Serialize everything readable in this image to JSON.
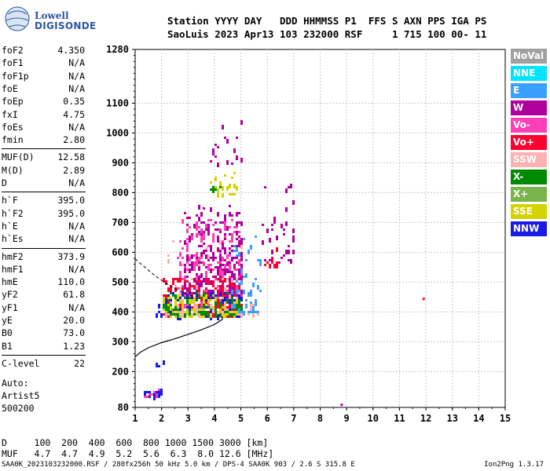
{
  "logo": {
    "line1": "Lowell",
    "line2": "DIGISONDE"
  },
  "header": {
    "line1": "Station YYYY DAY   DDD HHMMSS P1  FFS S AXN PPS IGA PS",
    "line2": "SaoLuis 2023 Apr13 103 232000 RSF     1 715 100 00- 11"
  },
  "params": [
    {
      "name": "foF2",
      "value": "4.350"
    },
    {
      "name": "foF1",
      "value": "N/A"
    },
    {
      "name": "foF1p",
      "value": "N/A"
    },
    {
      "name": "foE",
      "value": "N/A"
    },
    {
      "name": "foEp",
      "value": "0.35"
    },
    {
      "name": "fxI",
      "value": "4.75"
    },
    {
      "name": "foEs",
      "value": "N/A"
    },
    {
      "name": "fmin",
      "value": "2.80"
    },
    {
      "name": "MUF(D)",
      "value": "12.58"
    },
    {
      "name": "M(D)",
      "value": "2.89"
    },
    {
      "name": "D",
      "value": "N/A"
    },
    {
      "name": "h`F",
      "value": "395.0"
    },
    {
      "name": "h`F2",
      "value": "395.0"
    },
    {
      "name": "h`E",
      "value": "N/A"
    },
    {
      "name": "h`Es",
      "value": "N/A"
    },
    {
      "name": "hmF2",
      "value": "373.9"
    },
    {
      "name": "hmF1",
      "value": "N/A"
    },
    {
      "name": "hmE",
      "value": "110.0"
    },
    {
      "name": "yF2",
      "value": "61.8"
    },
    {
      "name": "yF1",
      "value": "N/A"
    },
    {
      "name": "yE",
      "value": "20.0"
    },
    {
      "name": "B0",
      "value": "73.0"
    },
    {
      "name": "B1",
      "value": "1.23"
    },
    {
      "name": "C-level",
      "value": "22"
    }
  ],
  "auto": {
    "line1": "Auto:",
    "line2": "Artist5",
    "line3": "500200"
  },
  "bottom": {
    "distance_row": "D     100  200  400  600  800 1000 1500 3000 [km]",
    "muf_row": "MUF   4.7  4.7  4.9  5.2  5.6  6.3  8.0 12.6 [MHz]"
  },
  "footer": {
    "left": "SAA0K_2023103232000.RSF / 280fx256h 50 kHz 5.0 km / DPS-4 SAA0K 903 / 2.6 S 315.8 E",
    "right": "Ion2Png 1.3.17"
  },
  "legend": [
    {
      "label": "NoVal",
      "color": "#a0a0a0"
    },
    {
      "label": "NNE",
      "color": "#00e5ff"
    },
    {
      "label": "E",
      "color": "#3aa0ff"
    },
    {
      "label": "W",
      "color": "#b0009b"
    },
    {
      "label": "Vo-",
      "color": "#ff3fb8"
    },
    {
      "label": "Vo+",
      "color": "#ff0030"
    },
    {
      "label": "SSW",
      "color": "#ffb0b0"
    },
    {
      "label": "X-",
      "color": "#008a00"
    },
    {
      "label": "X+",
      "color": "#78b44c"
    },
    {
      "label": "SSE",
      "color": "#d4d400"
    },
    {
      "label": "NNW",
      "color": "#1a1ae8"
    }
  ],
  "chart_data": {
    "type": "scatter",
    "xlim": [
      1,
      15
    ],
    "ylim": [
      80,
      1280
    ],
    "x_ticks": [
      1,
      2,
      3,
      4,
      5,
      6,
      7,
      8,
      9,
      10,
      11,
      12,
      13,
      14,
      15
    ],
    "y_ticks": [
      80,
      200,
      300,
      400,
      500,
      600,
      700,
      800,
      900,
      1000,
      1100,
      1280
    ],
    "grid": true,
    "profile_curve": [
      [
        1.0,
        250
      ],
      [
        1.2,
        265
      ],
      [
        1.5,
        280
      ],
      [
        2.0,
        297
      ],
      [
        2.5,
        310
      ],
      [
        3.0,
        325
      ],
      [
        3.5,
        340
      ],
      [
        4.0,
        358
      ],
      [
        4.3,
        375
      ],
      [
        4.3,
        382
      ],
      [
        4.1,
        392
      ]
    ],
    "dashed_curve": [
      [
        1.0,
        578
      ],
      [
        1.3,
        555
      ],
      [
        1.7,
        525
      ],
      [
        2.1,
        500
      ],
      [
        2.5,
        478
      ],
      [
        2.9,
        462
      ],
      [
        3.2,
        452
      ]
    ],
    "clusters": [
      {
        "color": "#b0009b",
        "x_range": [
          2.8,
          5.0
        ],
        "y_range": [
          460,
          760
        ],
        "count": 360
      },
      {
        "color": "#ff3fb8",
        "x_range": [
          2.6,
          5.0
        ],
        "y_range": [
          400,
          720
        ],
        "count": 240
      },
      {
        "color": "#ff0030",
        "x_range": [
          2.0,
          5.0
        ],
        "y_range": [
          395,
          520
        ],
        "count": 220
      },
      {
        "color": "#1a1ae8",
        "x_range": [
          1.8,
          5.0
        ],
        "y_range": [
          390,
          470
        ],
        "count": 130
      },
      {
        "color": "#d4d400",
        "x_range": [
          2.0,
          5.0
        ],
        "y_range": [
          395,
          460
        ],
        "count": 130
      },
      {
        "color": "#008a00",
        "x_range": [
          2.0,
          5.0
        ],
        "y_range": [
          395,
          470
        ],
        "count": 90
      },
      {
        "color": "#3aa0ff",
        "x_range": [
          4.6,
          5.7
        ],
        "y_range": [
          400,
          660
        ],
        "count": 60
      },
      {
        "color": "#ffb0b0",
        "x_range": [
          2.0,
          5.6
        ],
        "y_range": [
          395,
          650
        ],
        "count": 70
      },
      {
        "color": "#b0009b",
        "x_range": [
          5.8,
          7.0
        ],
        "y_range": [
          580,
          860
        ],
        "count": 35
      },
      {
        "color": "#ff0030",
        "x_range": [
          5.8,
          6.6
        ],
        "y_range": [
          560,
          640
        ],
        "count": 12
      },
      {
        "color": "#d4d400",
        "x_range": [
          3.8,
          4.8
        ],
        "y_range": [
          800,
          880
        ],
        "count": 22
      },
      {
        "color": "#008a00",
        "x_range": [
          3.8,
          4.2
        ],
        "y_range": [
          815,
          830
        ],
        "count": 8
      },
      {
        "color": "#b0009b",
        "x_range": [
          3.8,
          5.0
        ],
        "y_range": [
          900,
          1060
        ],
        "count": 18
      },
      {
        "color": "#1a1ae8",
        "x_range": [
          1.3,
          2.0
        ],
        "y_range": [
          123,
          140
        ],
        "count": 30
      },
      {
        "color": "#ff3fb8",
        "x_range": [
          1.3,
          2.2
        ],
        "y_range": [
          120,
          148
        ],
        "count": 10
      },
      {
        "color": "#1a1ae8",
        "x_range": [
          1.8,
          2.1
        ],
        "y_range": [
          225,
          240
        ],
        "count": 5
      }
    ],
    "isolated_points": [
      {
        "x": 11.9,
        "y": 445,
        "color": "#ff0030"
      },
      {
        "x": 8.8,
        "y": 90,
        "color": "#b0009b"
      }
    ]
  }
}
